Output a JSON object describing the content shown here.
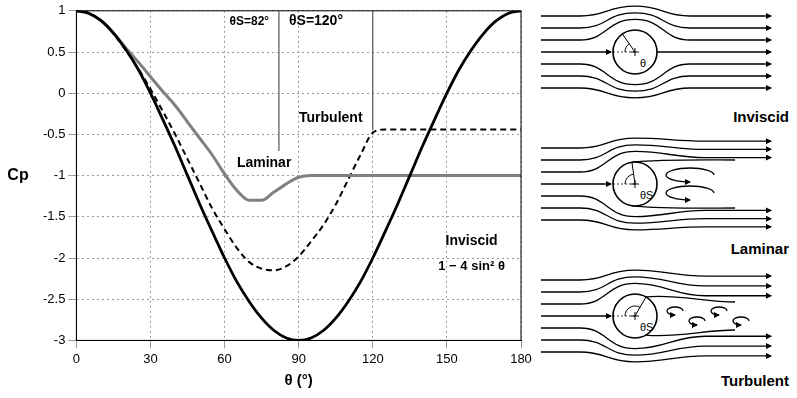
{
  "chart_data": {
    "type": "line",
    "x_label": "θ (°)",
    "y_label": "Cp",
    "x": [
      0,
      5,
      10,
      15,
      20,
      25,
      30,
      35,
      40,
      45,
      50,
      55,
      60,
      65,
      70,
      75,
      80,
      85,
      90,
      95,
      100,
      105,
      110,
      115,
      120,
      125,
      130,
      135,
      140,
      145,
      150,
      155,
      160,
      165,
      170,
      175,
      180
    ],
    "xlim": [
      0,
      180
    ],
    "xticks": [
      0,
      30,
      60,
      90,
      120,
      150,
      180
    ],
    "ylim": [
      -3,
      1
    ],
    "yticks": [
      -3,
      -2.5,
      -2,
      -1.5,
      -1,
      -0.5,
      0,
      0.5,
      1
    ],
    "grid": true,
    "series": [
      {
        "name": "Inviscid",
        "color": "#000000",
        "line_style": "solid",
        "label_x": 160,
        "label_y": -1.8,
        "values": [
          1,
          0.97,
          0.88,
          0.73,
          0.53,
          0.29,
          0,
          -0.32,
          -0.65,
          -1,
          -1.35,
          -1.68,
          -2,
          -2.29,
          -2.53,
          -2.73,
          -2.88,
          -2.97,
          -3,
          -2.97,
          -2.88,
          -2.73,
          -2.53,
          -2.29,
          -2,
          -1.68,
          -1.35,
          -1,
          -0.65,
          -0.32,
          0,
          0.29,
          0.53,
          0.73,
          0.88,
          0.97,
          1
        ]
      },
      {
        "name": "Laminar",
        "color": "#808080",
        "line_style": "solid",
        "label_x": 76,
        "label_y": -0.85,
        "values": [
          1,
          0.97,
          0.88,
          0.73,
          0.55,
          0.38,
          0.2,
          0.02,
          -0.15,
          -0.35,
          -0.55,
          -0.75,
          -0.98,
          -1.18,
          -1.3,
          -1.3,
          -1.2,
          -1.1,
          -1.02,
          -1,
          -1,
          -1,
          -1,
          -1,
          -1,
          -1,
          -1,
          -1,
          -1,
          -1,
          -1,
          -1,
          -1,
          -1,
          -1,
          -1,
          -1
        ]
      },
      {
        "name": "Turbulent",
        "color": "#000000",
        "line_style": "dashed",
        "label_x": 103,
        "label_y": -0.3,
        "values": [
          1,
          0.97,
          0.88,
          0.72,
          0.52,
          0.3,
          0.05,
          -0.22,
          -0.5,
          -0.8,
          -1.1,
          -1.4,
          -1.65,
          -1.88,
          -2.05,
          -2.13,
          -2.15,
          -2.1,
          -1.98,
          -1.8,
          -1.6,
          -1.35,
          -1.05,
          -0.75,
          -0.48,
          -0.44,
          -0.44,
          -0.44,
          -0.44,
          -0.44,
          -0.44,
          -0.44,
          -0.44,
          -0.44,
          -0.44,
          -0.44,
          -0.44
        ]
      }
    ],
    "separation": [
      {
        "x": 82,
        "label": "θS=82°",
        "label_x": 70,
        "label_y": 0.87,
        "y_end": -0.7
      },
      {
        "x": 120,
        "label": "θS=120°",
        "label_x": 97,
        "label_y": 0.87,
        "y_end": -0.45
      }
    ],
    "annotations": [
      {
        "text": "1 − 4 sin² θ",
        "x": 160,
        "y": -2.1
      }
    ]
  },
  "diagrams": [
    {
      "label": "Inviscid",
      "angle_label": "θ"
    },
    {
      "label": "Laminar",
      "angle_label": "θS"
    },
    {
      "label": "Turbulent",
      "angle_label": "θS"
    }
  ]
}
